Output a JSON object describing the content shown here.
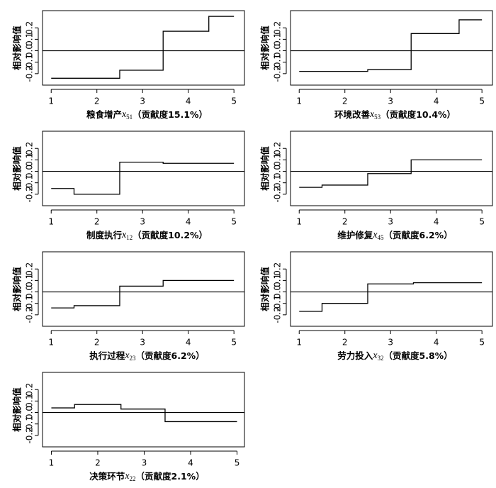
{
  "chart_data": [
    {
      "type": "step",
      "ylabel": "相对影响值",
      "xlabel_name": "粮食增产",
      "xlabel_var": "x",
      "xlabel_sub": "51",
      "xlabel_note": "（贡献度15.1%）",
      "x": [
        1,
        2.5,
        3.45,
        4.45,
        5
      ],
      "values": [
        -0.24,
        -0.17,
        0.17,
        0.3,
        0.3
      ],
      "hline": 0,
      "xlim": [
        0.81,
        5.23
      ],
      "ylim": [
        -0.3,
        0.35
      ],
      "xticks": [
        1,
        2,
        3,
        4,
        5
      ],
      "yticks": [
        -0.2,
        -0.1,
        {
          "value": 0,
          "label": "0.0"
        },
        0.1,
        0.2
      ],
      "color": "#000000"
    },
    {
      "type": "step",
      "ylabel": "相对影响值",
      "xlabel_name": "环境改善",
      "xlabel_var": "x",
      "xlabel_sub": "53",
      "xlabel_note": "（贡献度10.4%）",
      "x": [
        1,
        2.5,
        3.45,
        4.5,
        5
      ],
      "values": [
        -0.18,
        -0.165,
        0.15,
        0.27,
        0.27
      ],
      "hline": 0,
      "xlim": [
        0.81,
        5.23
      ],
      "ylim": [
        -0.3,
        0.35
      ],
      "xticks": [
        1,
        2,
        3,
        4,
        5
      ],
      "yticks": [
        -0.2,
        -0.1,
        {
          "value": 0,
          "label": "0.0"
        },
        0.1,
        0.2
      ],
      "color": "#000000"
    },
    {
      "type": "step",
      "ylabel": "相对影响值",
      "xlabel_name": "制度执行",
      "xlabel_var": "x",
      "xlabel_sub": "12",
      "xlabel_note": "（贡献度10.2%）",
      "x": [
        1,
        1.5,
        2.5,
        3.45,
        5
      ],
      "values": [
        -0.15,
        -0.2,
        0.08,
        0.07,
        0.07
      ],
      "hline": 0,
      "xlim": [
        0.81,
        5.23
      ],
      "ylim": [
        -0.3,
        0.35
      ],
      "xticks": [
        1,
        2,
        3,
        4,
        5
      ],
      "yticks": [
        -0.2,
        -0.1,
        {
          "value": 0,
          "label": "0.0"
        },
        0.1,
        0.2
      ],
      "color": "#000000"
    },
    {
      "type": "step",
      "ylabel": "相对影响值",
      "xlabel_name": "维护修复",
      "xlabel_var": "x",
      "xlabel_sub": "45",
      "xlabel_note": "（贡献度6.2%）",
      "x": [
        1,
        1.5,
        2.5,
        3.45,
        5
      ],
      "values": [
        -0.14,
        -0.12,
        -0.02,
        0.1,
        0.1
      ],
      "hline": 0,
      "xlim": [
        0.81,
        5.23
      ],
      "ylim": [
        -0.3,
        0.35
      ],
      "xticks": [
        1,
        2,
        3,
        4,
        5
      ],
      "yticks": [
        -0.2,
        -0.1,
        {
          "value": 0,
          "label": "0.0"
        },
        0.1,
        0.2
      ],
      "color": "#000000"
    },
    {
      "type": "step",
      "ylabel": "相对影响值",
      "xlabel_name": "执行过程",
      "xlabel_var": "x",
      "xlabel_sub": "23",
      "xlabel_note": "（贡献度6.2%）",
      "x": [
        1,
        1.5,
        2.5,
        3.45,
        5
      ],
      "values": [
        -0.14,
        -0.12,
        0.05,
        0.1,
        0.1
      ],
      "hline": 0,
      "xlim": [
        0.81,
        5.23
      ],
      "ylim": [
        -0.3,
        0.35
      ],
      "xticks": [
        1,
        2,
        3,
        4,
        5
      ],
      "yticks": [
        -0.2,
        -0.1,
        {
          "value": 0,
          "label": "0.0"
        },
        0.1,
        0.2
      ],
      "color": "#000000"
    },
    {
      "type": "step",
      "ylabel": "相对影响值",
      "xlabel_name": "劳力投入",
      "xlabel_var": "x",
      "xlabel_sub": "32",
      "xlabel_note": "（贡献度5.8%）",
      "x": [
        1,
        1.5,
        2.5,
        3.5,
        5
      ],
      "values": [
        -0.17,
        -0.1,
        0.07,
        0.08,
        0.08
      ],
      "hline": 0,
      "xlim": [
        0.81,
        5.23
      ],
      "ylim": [
        -0.3,
        0.35
      ],
      "xticks": [
        1,
        2,
        3,
        4,
        5
      ],
      "yticks": [
        -0.2,
        -0.1,
        {
          "value": 0,
          "label": "0.0"
        },
        0.1,
        0.2
      ],
      "color": "#000000"
    },
    {
      "type": "step",
      "ylabel": "相对影响值",
      "xlabel_name": "决策环节",
      "xlabel_var": "x",
      "xlabel_sub": "22",
      "xlabel_note": "（贡献度2.1%）",
      "x": [
        1,
        1.5,
        2.5,
        3.45,
        5
      ],
      "values": [
        0.04,
        0.07,
        0.03,
        -0.08,
        -0.08
      ],
      "hline": 0,
      "xlim": [
        0.81,
        5.16
      ],
      "ylim": [
        -0.3,
        0.35
      ],
      "xticks": [
        1,
        2,
        3,
        4,
        5
      ],
      "yticks": [
        -0.2,
        -0.1,
        {
          "value": 0,
          "label": "0.0"
        },
        0.1,
        0.2
      ],
      "color": "#000000"
    }
  ]
}
